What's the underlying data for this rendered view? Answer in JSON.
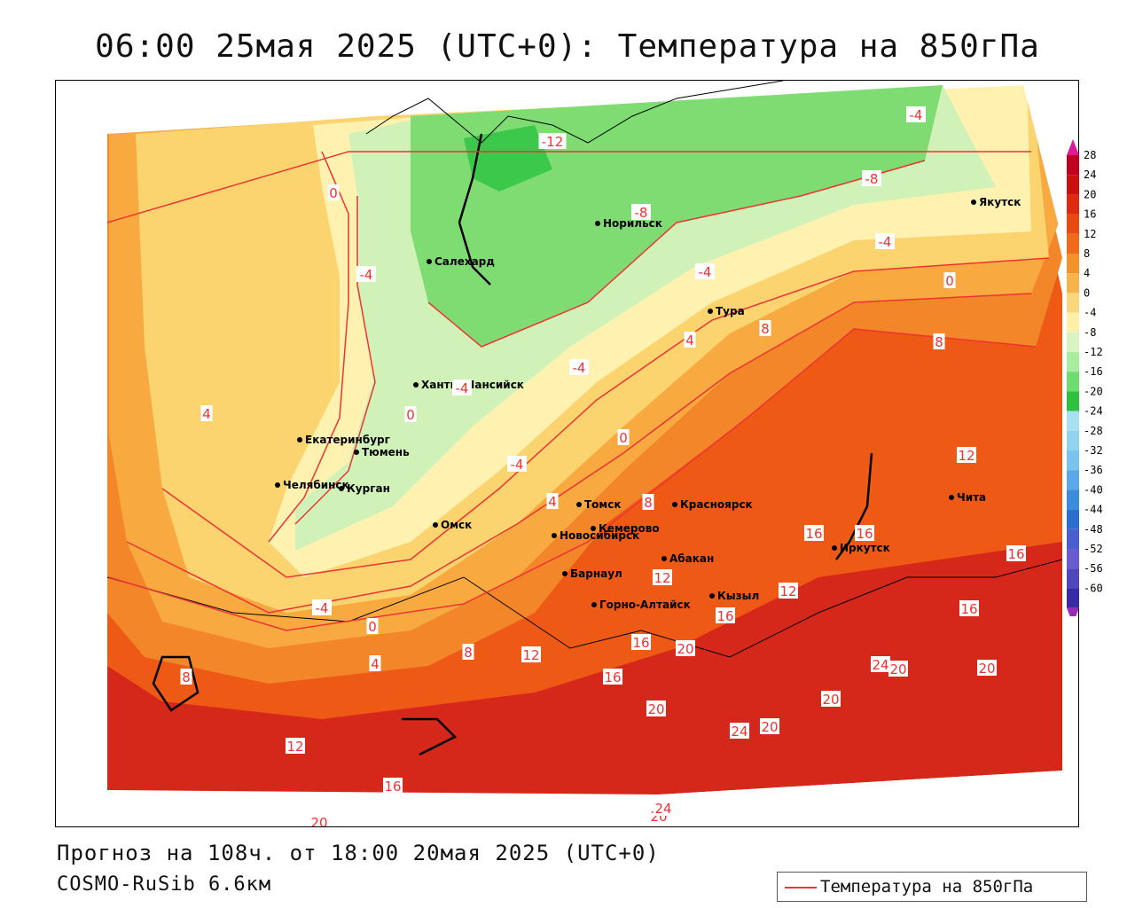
{
  "title": "06:00 25мая 2025 (UTC+0): Температура на 850гПа",
  "forecast_text": "Прогноз на 108ч. от 18:00 20мая 2025 (UTC+0)",
  "model_text": "COSMO-RuSib 6.6км",
  "legend_label": "Температура на 850гПа",
  "colorbar": {
    "ticks": [
      "28",
      "24",
      "20",
      "16",
      "12",
      "8",
      "4",
      "0",
      "-4",
      "-8",
      "-12",
      "-16",
      "-20",
      "-24",
      "-28",
      "-32",
      "-36",
      "-40",
      "-44",
      "-48",
      "-52",
      "-56",
      "-60"
    ],
    "colors": [
      "#c0001e",
      "#cc1010",
      "#de2a10",
      "#ea4a12",
      "#f06a1a",
      "#f4922a",
      "#f8b44a",
      "#fbd67c",
      "#fff0a8",
      "#d8f4c0",
      "#a8eca0",
      "#6edc6e",
      "#30c040",
      "#a8e0f0",
      "#90d4f0",
      "#78c4ee",
      "#5aa8e8",
      "#3c8cdc",
      "#2a6ed0",
      "#4a5ed0",
      "#6a5cd0",
      "#5046c0",
      "#3a2aa8"
    ],
    "top_arrow_color": "#e0189a",
    "bottom_arrow_color": "#9c2ab4"
  },
  "cities": [
    {
      "name": "Салехард"
    },
    {
      "name": "Норильск"
    },
    {
      "name": "Якутск"
    },
    {
      "name": "Тура"
    },
    {
      "name": "Ханты-Мансийск"
    },
    {
      "name": "Екатеринбург"
    },
    {
      "name": "Тюмень"
    },
    {
      "name": "Челябинск"
    },
    {
      "name": "Курган"
    },
    {
      "name": "Омск"
    },
    {
      "name": "Новосибирск"
    },
    {
      "name": "Томск"
    },
    {
      "name": "Кемерово"
    },
    {
      "name": "Красноярск"
    },
    {
      "name": "Барнаул"
    },
    {
      "name": "Абакан"
    },
    {
      "name": "Горно-Алтайск"
    },
    {
      "name": "Кызыл"
    },
    {
      "name": "Иркутск"
    },
    {
      "name": "Чита"
    }
  ],
  "isotherm_labels": [
    "-12",
    "-8",
    "-8",
    "-4",
    "-4",
    "-4",
    "-4",
    "-4",
    "-4",
    "-4",
    "-4",
    "-4",
    "0",
    "0",
    "0",
    "0",
    "0",
    "4",
    "4",
    "4",
    "4",
    "8",
    "8",
    "8",
    "8",
    "8",
    "12",
    "12",
    "12",
    "12",
    "12",
    "16",
    "16",
    "16",
    "16",
    "16",
    "16",
    "16",
    "16",
    "20",
    "20",
    "20",
    "20",
    "20",
    "20",
    "20",
    "20",
    "24",
    "24",
    "24"
  ]
}
